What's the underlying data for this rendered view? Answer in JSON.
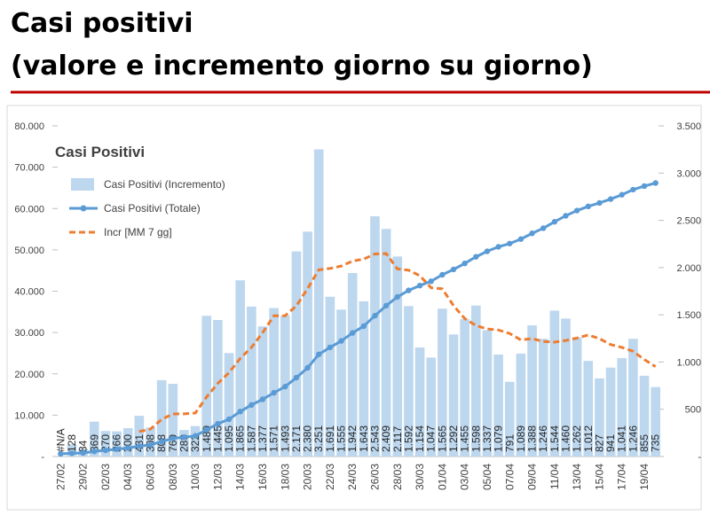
{
  "header": {
    "title": "Casi positivi",
    "subtitle": "(valore e incremento giorno su giorno)"
  },
  "chart_data": {
    "type": "combo",
    "title": "Casi Positivi",
    "categories": [
      "27/02",
      null,
      "29/02",
      null,
      "02/03",
      null,
      "04/03",
      null,
      "06/03",
      null,
      "08/03",
      null,
      "10/03",
      null,
      "12/03",
      null,
      "14/03",
      null,
      "16/03",
      null,
      "18/03",
      null,
      "20/03",
      null,
      "22/03",
      null,
      "24/03",
      null,
      "26/03",
      null,
      "28/03",
      null,
      "30/03",
      null,
      "01/04",
      null,
      "03/04",
      null,
      "05/04",
      null,
      "07/04",
      null,
      "09/04",
      null,
      "11/04",
      null,
      "13/04",
      null,
      "15/04",
      null,
      "17/04",
      null,
      "19/04",
      null
    ],
    "series": [
      {
        "name": "Casi Positivi (Incremento)",
        "type": "bar",
        "axis": "y2",
        "color": "#bdd7ee",
        "values": [
          null,
          128,
          84,
          369,
          270,
          266,
          300,
          431,
          308,
          808,
          769,
          280,
          322,
          1489,
          1445,
          1095,
          1865,
          1587,
          1377,
          1571,
          1493,
          2171,
          2380,
          3251,
          1691,
          1555,
          1942,
          1643,
          2543,
          2409,
          2117,
          1592,
          1154,
          1047,
          1565,
          1292,
          1455,
          1598,
          1337,
          1079,
          791,
          1089,
          1388,
          1246,
          1544,
          1460,
          1262,
          1012,
          827,
          941,
          1041,
          1246,
          855,
          735
        ],
        "value_labels": [
          "#N/A",
          "128",
          "84",
          "369",
          "270",
          "266",
          "300",
          "431",
          "308",
          "808",
          "769",
          "280",
          "322",
          "1.489",
          "1.445",
          "1.095",
          "1.865",
          "1.587",
          "1.377",
          "1.571",
          "1.493",
          "2.171",
          "2.380",
          "3.251",
          "1.691",
          "1.555",
          "1.942",
          "1.643",
          "2.543",
          "2.409",
          "2.117",
          "1.592",
          "1.154",
          "1.047",
          "1.565",
          "1.292",
          "1.455",
          "1.598",
          "1.337",
          "1.079",
          "791",
          "1.089",
          "1.388",
          "1.246",
          "1.544",
          "1.460",
          "1.262",
          "1.012",
          "827",
          "941",
          "1.041",
          "1.246",
          "855",
          "735"
        ]
      },
      {
        "name": "Casi Positivi (Totale)",
        "type": "line",
        "axis": "y",
        "color": "#5b9bd5",
        "values": [
          650,
          778,
          862,
          1231,
          1501,
          1767,
          2067,
          2498,
          2806,
          3614,
          4383,
          4663,
          4985,
          6474,
          7919,
          9014,
          10879,
          12466,
          13843,
          15414,
          16907,
          19078,
          21458,
          24709,
          26400,
          27955,
          29897,
          31540,
          34083,
          36492,
          38609,
          40201,
          41355,
          42402,
          43967,
          45259,
          46714,
          48312,
          49649,
          50728,
          51519,
          52608,
          53996,
          55242,
          56786,
          58246,
          59508,
          60520,
          61347,
          62288,
          63329,
          64575,
          65430,
          66165
        ]
      },
      {
        "name": "Incr [MM 7 gg]",
        "type": "dashed-line",
        "axis": "y2",
        "color": "#ed7d31",
        "values": [
          null,
          null,
          null,
          null,
          null,
          null,
          null,
          264,
          290,
          393,
          450,
          452,
          460,
          630,
          774,
          887,
          1038,
          1155,
          1311,
          1490,
          1490,
          1594,
          1778,
          1976,
          1991,
          2016,
          2069,
          2090,
          2144,
          2148,
          1986,
          1972,
          1914,
          1786,
          1775,
          1597,
          1460,
          1386,
          1350,
          1339,
          1302,
          1234,
          1248,
          1218,
          1211,
          1228,
          1254,
          1286,
          1248,
          1185,
          1155,
          1113,
          1026,
          951
        ]
      }
    ],
    "ylim": [
      0,
      80000
    ],
    "yticks": [
      {
        "value": 0,
        "label": "-"
      },
      {
        "value": 10000,
        "label": "10.000"
      },
      {
        "value": 20000,
        "label": "20.000"
      },
      {
        "value": 30000,
        "label": "30.000"
      },
      {
        "value": 40000,
        "label": "40.000"
      },
      {
        "value": 50000,
        "label": "50.000"
      },
      {
        "value": 60000,
        "label": "60.000"
      },
      {
        "value": 70000,
        "label": "70.000"
      },
      {
        "value": 80000,
        "label": "80.000"
      }
    ],
    "y2lim": [
      0,
      3500
    ],
    "y2ticks": [
      {
        "value": 0,
        "label": "-"
      },
      500,
      {
        "value": 1000,
        "label": "1.000"
      },
      {
        "value": 1500,
        "label": "1.500"
      },
      {
        "value": 2000,
        "label": "2.000"
      },
      {
        "value": 2500,
        "label": "2.500"
      },
      {
        "value": 3000,
        "label": "3.000"
      },
      {
        "value": 3500,
        "label": "3.500"
      }
    ]
  }
}
